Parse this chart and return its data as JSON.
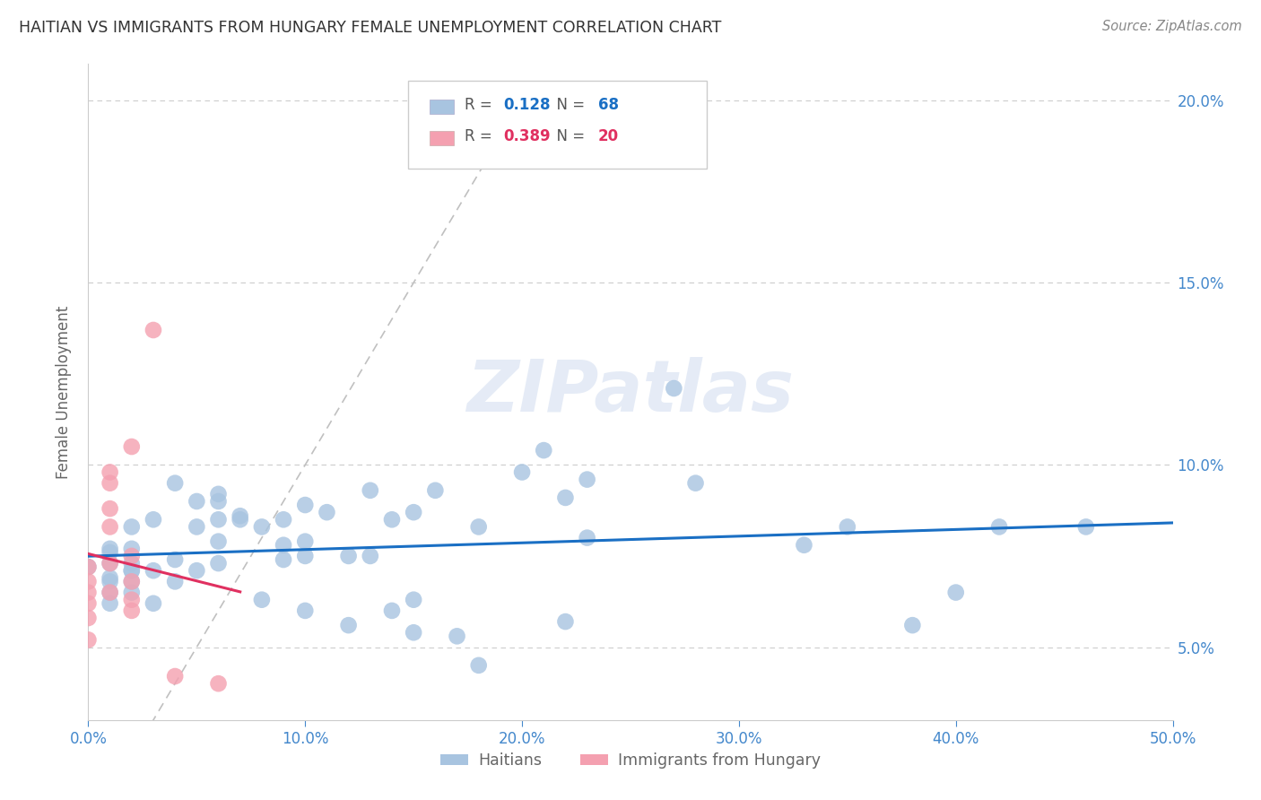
{
  "title": "HAITIAN VS IMMIGRANTS FROM HUNGARY FEMALE UNEMPLOYMENT CORRELATION CHART",
  "source": "Source: ZipAtlas.com",
  "ylabel": "Female Unemployment",
  "x_tick_vals": [
    0,
    10,
    20,
    30,
    40,
    50
  ],
  "x_tick_labels": [
    "0.0%",
    "10.0%",
    "20.0%",
    "30.0%",
    "40.0%",
    "50.0%"
  ],
  "y_tick_vals": [
    5,
    10,
    15,
    20
  ],
  "y_tick_labels": [
    "5.0%",
    "10.0%",
    "15.0%",
    "20.0%"
  ],
  "xlim": [
    0,
    50
  ],
  "ylim": [
    3,
    21
  ],
  "R1": "0.128",
  "N1": "68",
  "R2": "0.389",
  "N2": "20",
  "color1": "#a8c4e0",
  "color2": "#f4a0b0",
  "line1_color": "#1a6fc4",
  "line2_color": "#e03060",
  "background_color": "#ffffff",
  "grid_color": "#cccccc",
  "title_color": "#333333",
  "tick_color": "#4488cc",
  "watermark": "ZIPatlas",
  "legend1_label": "Haitians",
  "legend2_label": "Immigrants from Hungary",
  "haitians_x": [
    0.0,
    1,
    1,
    1,
    1,
    1,
    1,
    1,
    2,
    2,
    2,
    2,
    2,
    2,
    2,
    3,
    3,
    3,
    4,
    4,
    4,
    5,
    5,
    5,
    6,
    6,
    6,
    6,
    6,
    7,
    7,
    8,
    8,
    9,
    9,
    9,
    10,
    10,
    10,
    10,
    11,
    12,
    12,
    13,
    13,
    14,
    14,
    15,
    15,
    15,
    16,
    17,
    18,
    18,
    20,
    21,
    22,
    22,
    23,
    23,
    27,
    28,
    33,
    35,
    38,
    40,
    42,
    46
  ],
  "haitians_y": [
    7.2,
    6.8,
    6.5,
    7.3,
    6.2,
    6.9,
    7.6,
    7.7,
    6.5,
    7.1,
    6.8,
    7.3,
    7.7,
    8.3,
    7.1,
    8.5,
    7.1,
    6.2,
    7.4,
    6.8,
    9.5,
    9.0,
    8.3,
    7.1,
    9.2,
    7.9,
    8.5,
    7.3,
    9.0,
    8.5,
    8.6,
    8.3,
    6.3,
    8.5,
    7.8,
    7.4,
    7.9,
    8.9,
    7.5,
    6.0,
    8.7,
    7.5,
    5.6,
    9.3,
    7.5,
    8.5,
    6.0,
    8.7,
    6.3,
    5.4,
    9.3,
    5.3,
    8.3,
    4.5,
    9.8,
    10.4,
    9.1,
    5.7,
    9.6,
    8.0,
    12.1,
    9.5,
    7.8,
    8.3,
    5.6,
    6.5,
    8.3,
    8.3
  ],
  "hungary_x": [
    0,
    0,
    0,
    0,
    0,
    0,
    1,
    1,
    1,
    1,
    1,
    1,
    2,
    2,
    2,
    2,
    2,
    3,
    4,
    6
  ],
  "hungary_y": [
    6.5,
    6.8,
    7.2,
    6.2,
    5.8,
    5.2,
    8.3,
    8.8,
    7.3,
    6.5,
    9.5,
    9.8,
    7.5,
    6.8,
    6.3,
    6.0,
    10.5,
    13.7,
    4.2,
    4.0
  ]
}
